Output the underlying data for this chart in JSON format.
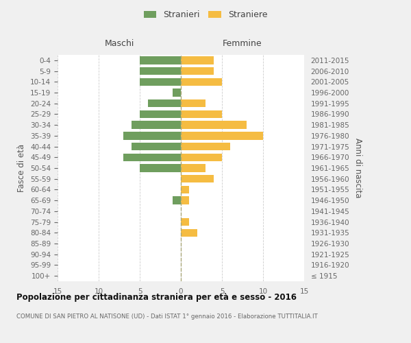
{
  "age_groups": [
    "100+",
    "95-99",
    "90-94",
    "85-89",
    "80-84",
    "75-79",
    "70-74",
    "65-69",
    "60-64",
    "55-59",
    "50-54",
    "45-49",
    "40-44",
    "35-39",
    "30-34",
    "25-29",
    "20-24",
    "15-19",
    "10-14",
    "5-9",
    "0-4"
  ],
  "birth_years": [
    "≤ 1915",
    "1916-1920",
    "1921-1925",
    "1926-1930",
    "1931-1935",
    "1936-1940",
    "1941-1945",
    "1946-1950",
    "1951-1955",
    "1956-1960",
    "1961-1965",
    "1966-1970",
    "1971-1975",
    "1976-1980",
    "1981-1985",
    "1986-1990",
    "1991-1995",
    "1996-2000",
    "2001-2005",
    "2006-2010",
    "2011-2015"
  ],
  "males": [
    0,
    0,
    0,
    0,
    0,
    0,
    0,
    1,
    0,
    0,
    5,
    7,
    6,
    7,
    6,
    5,
    4,
    1,
    5,
    5,
    5
  ],
  "females": [
    0,
    0,
    0,
    0,
    2,
    1,
    0,
    1,
    1,
    4,
    3,
    5,
    6,
    10,
    8,
    5,
    3,
    0,
    5,
    4,
    4
  ],
  "male_color": "#6f9e5e",
  "female_color": "#f5bc42",
  "background_color": "#f0f0f0",
  "bar_background": "#ffffff",
  "title": "Popolazione per cittadinanza straniera per età e sesso - 2016",
  "subtitle": "COMUNE DI SAN PIETRO AL NATISONE (UD) - Dati ISTAT 1° gennaio 2016 - Elaborazione TUTTITALIA.IT",
  "xlabel_left": "Maschi",
  "xlabel_right": "Femmine",
  "ylabel_left": "Fasce di età",
  "ylabel_right": "Anni di nascita",
  "xlim": 15,
  "legend_male": "Stranieri",
  "legend_female": "Straniere",
  "grid_color": "#cccccc"
}
